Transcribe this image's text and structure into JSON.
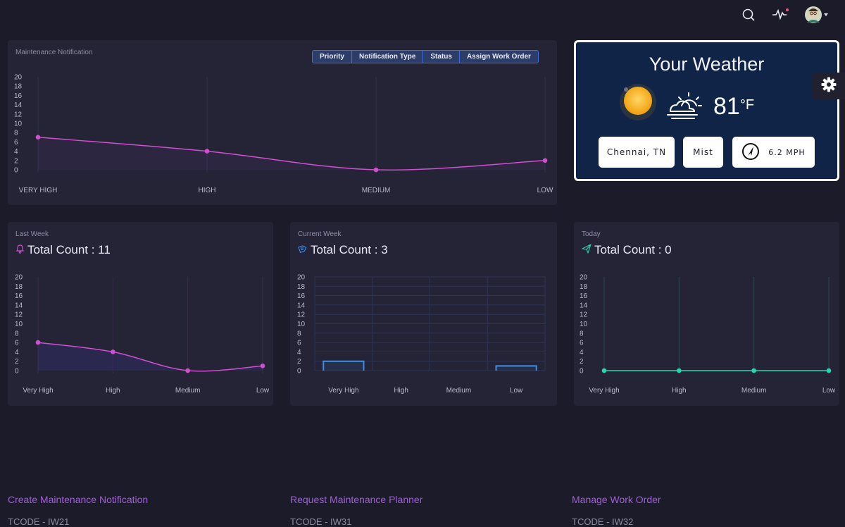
{
  "header": {
    "icons": [
      "search-icon",
      "activity-icon",
      "avatar"
    ]
  },
  "main_chart": {
    "title": "Maintenance Notification",
    "tabs": [
      "Priority",
      "Notification Type",
      "Status",
      "Assign Work Order"
    ]
  },
  "weather": {
    "title": "Your Weather",
    "temperature": "81",
    "unit": "°F",
    "city": "Chennai, TN",
    "condition": "Mist",
    "wind": "6.2 MPH"
  },
  "cards": [
    {
      "period": "Last Week",
      "count_label": "Total Count : 11",
      "icon": "bell-icon"
    },
    {
      "period": "Current Week",
      "count_label": "Total Count : 3",
      "icon": "ticket-icon"
    },
    {
      "period": "Today",
      "count_label": "Total Count : 0",
      "icon": "send-icon"
    }
  ],
  "links": [
    {
      "label": "Create Maintenance Notification",
      "tcode": "TCODE - IW21"
    },
    {
      "label": "Request Maintenance Planner",
      "tcode": "TCODE - IW31"
    },
    {
      "label": "Manage Work Order",
      "tcode": "TCODE - IW32"
    }
  ],
  "colors": {
    "background": "#1b1b2a",
    "card": "#242436",
    "pink": "#d14fcf",
    "blue": "#3e8ee8",
    "teal": "#27d5b0",
    "link": "#a15ed8"
  },
  "chart_data": [
    {
      "type": "line",
      "categories": [
        "VERY HIGH",
        "HIGH",
        "MEDIUM",
        "LOW"
      ],
      "values": [
        7,
        4,
        0,
        2
      ],
      "yticks": [
        0,
        2,
        4,
        6,
        8,
        10,
        12,
        14,
        16,
        18,
        20
      ],
      "ylim": [
        0,
        20
      ]
    },
    {
      "type": "line",
      "categories": [
        "Very High",
        "High",
        "Medium",
        "Low"
      ],
      "values": [
        6,
        4,
        0,
        1
      ],
      "yticks": [
        0,
        2,
        4,
        6,
        8,
        10,
        12,
        14,
        16,
        18,
        20
      ],
      "ylim": [
        0,
        20
      ]
    },
    {
      "type": "bar",
      "categories": [
        "Very High",
        "High",
        "Medium",
        "Low"
      ],
      "values": [
        2,
        0,
        0,
        1
      ],
      "yticks": [
        0,
        2,
        4,
        6,
        8,
        10,
        12,
        14,
        16,
        18,
        20
      ],
      "ylim": [
        0,
        20
      ]
    },
    {
      "type": "line",
      "categories": [
        "Very High",
        "High",
        "Medium",
        "Low"
      ],
      "values": [
        0,
        0,
        0,
        0
      ],
      "yticks": [
        0,
        2,
        4,
        6,
        8,
        10,
        12,
        14,
        16,
        18,
        20
      ],
      "ylim": [
        0,
        20
      ]
    }
  ]
}
